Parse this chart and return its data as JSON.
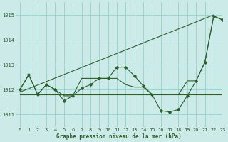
{
  "line1_x": [
    0,
    1,
    2,
    3,
    4,
    5,
    6,
    7,
    8,
    9,
    10,
    11,
    12,
    13,
    14,
    15,
    16,
    17,
    18,
    19,
    20,
    21,
    22,
    23
  ],
  "line1_y": [
    1012.0,
    1012.6,
    1011.8,
    1012.2,
    1012.0,
    1011.55,
    1011.75,
    1012.05,
    1012.2,
    1012.45,
    1012.45,
    1012.9,
    1012.9,
    1012.55,
    1012.15,
    1011.8,
    1011.15,
    1011.1,
    1011.2,
    1011.75,
    1012.35,
    1013.1,
    1014.95,
    1014.8
  ],
  "line2_x": [
    0,
    1,
    2,
    3,
    4,
    5,
    6,
    7,
    8,
    9,
    10,
    11,
    12,
    13,
    14,
    15,
    16,
    17,
    18,
    19,
    20,
    21,
    22,
    23
  ],
  "line2_y": [
    1012.0,
    1012.6,
    1011.8,
    1012.2,
    1012.0,
    1011.75,
    1011.75,
    1012.45,
    1012.45,
    1012.45,
    1012.45,
    1012.45,
    1012.2,
    1012.1,
    1012.1,
    1011.8,
    1011.8,
    1011.8,
    1011.8,
    1012.35,
    1012.35,
    1013.1,
    1014.95,
    1014.8
  ],
  "line3_x": [
    0,
    23
  ],
  "line3_y": [
    1011.8,
    1011.8
  ],
  "line4_x": [
    0,
    22
  ],
  "line4_y": [
    1011.9,
    1015.0
  ],
  "bg_color": "#cceae7",
  "grid_color": "#99d5d0",
  "line_color": "#2d5f2d",
  "xlabel": "Graphe pression niveau de la mer (hPa)",
  "ylim": [
    1010.5,
    1015.5
  ],
  "xlim": [
    -0.5,
    23
  ],
  "yticks": [
    1011,
    1012,
    1013,
    1014,
    1015
  ],
  "xticks": [
    0,
    1,
    2,
    3,
    4,
    5,
    6,
    7,
    8,
    9,
    10,
    11,
    12,
    13,
    14,
    15,
    16,
    17,
    18,
    19,
    20,
    21,
    22,
    23
  ]
}
